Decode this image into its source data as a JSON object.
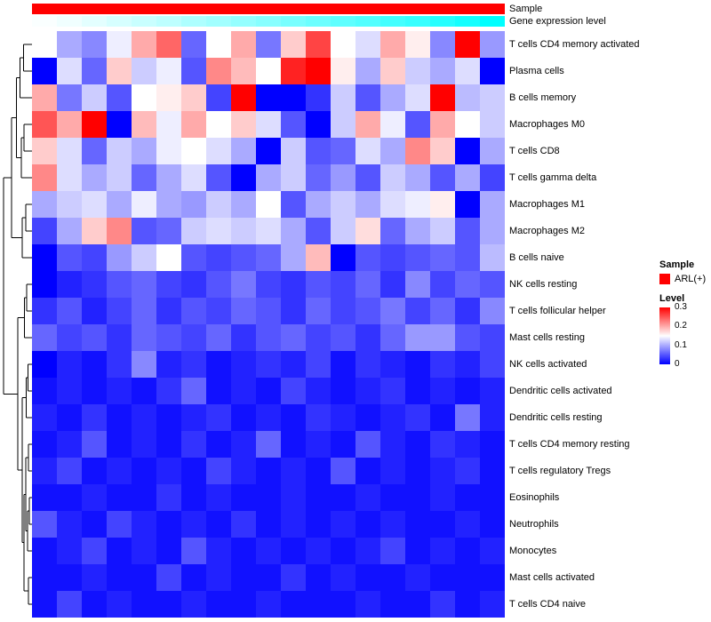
{
  "annotations": {
    "sample_label": "Sample",
    "gene_label": "Gene expression level",
    "sample_color": "#FF0000",
    "gene_gradient_low": "#FFFFFF",
    "gene_gradient_high": "#00FFFF",
    "gene_levels": [
      0.02,
      0.06,
      0.11,
      0.16,
      0.21,
      0.26,
      0.32,
      0.37,
      0.42,
      0.47,
      0.53,
      0.58,
      0.63,
      0.68,
      0.74,
      0.79,
      0.85,
      0.92,
      1.0
    ]
  },
  "legend": {
    "sample": {
      "title": "Sample",
      "items": [
        {
          "label": "ARL(+)",
          "color": "#FF0000"
        }
      ]
    },
    "level": {
      "title": "Level",
      "ticks": [
        {
          "label": "0.3",
          "value": 0.3
        },
        {
          "label": "0.2",
          "value": 0.2
        },
        {
          "label": "0.1",
          "value": 0.1
        },
        {
          "label": "0",
          "value": 0.0
        }
      ]
    }
  },
  "chart_data": {
    "type": "heatmap",
    "title": "",
    "rows": [
      "T cells CD4 memory activated",
      "Plasma cells",
      "B cells memory",
      "Macrophages M0",
      "T cells CD8",
      "T cells gamma delta",
      "Macrophages M1",
      "Macrophages M2",
      "B cells naive",
      "NK cells resting",
      "T cells follicular helper",
      "Mast cells resting",
      "NK cells activated",
      "Dendritic cells activated",
      "Dendritic cells resting",
      "T cells CD4 memory resting",
      "T cells regulatory  Tregs",
      "Eosinophils",
      "Neutrophils",
      "Monocytes",
      "Mast cells activated",
      "T cells CD4 naive"
    ],
    "columns": 19,
    "column_labels": [],
    "scale": {
      "min": 0,
      "mid": 0.15,
      "max": 0.3,
      "low_color": "#0000FF",
      "mid_color": "#FFFFFF",
      "high_color": "#FF0000"
    },
    "values": [
      [
        0.15,
        0.1,
        0.08,
        0.14,
        0.2,
        0.24,
        0.06,
        0.15,
        0.2,
        0.07,
        0.18,
        0.26,
        0.15,
        0.13,
        0.2,
        0.16,
        0.08,
        0.3,
        0.09
      ],
      [
        0.0,
        0.13,
        0.06,
        0.18,
        0.12,
        0.14,
        0.05,
        0.22,
        0.19,
        0.15,
        0.28,
        0.3,
        0.16,
        0.1,
        0.18,
        0.12,
        0.1,
        0.13,
        0.0
      ],
      [
        0.2,
        0.07,
        0.12,
        0.05,
        0.15,
        0.16,
        0.18,
        0.04,
        0.3,
        0.0,
        0.0,
        0.03,
        0.12,
        0.05,
        0.1,
        0.13,
        0.3,
        0.11,
        0.12
      ],
      [
        0.25,
        0.2,
        0.3,
        0.0,
        0.19,
        0.14,
        0.2,
        0.15,
        0.18,
        0.13,
        0.05,
        0.0,
        0.12,
        0.2,
        0.14,
        0.05,
        0.2,
        0.15,
        0.12
      ],
      [
        0.18,
        0.13,
        0.06,
        0.12,
        0.1,
        0.14,
        0.15,
        0.13,
        0.1,
        0.0,
        0.12,
        0.05,
        0.06,
        0.13,
        0.1,
        0.22,
        0.18,
        0.0,
        0.1
      ],
      [
        0.22,
        0.13,
        0.1,
        0.12,
        0.06,
        0.1,
        0.13,
        0.05,
        0.0,
        0.1,
        0.12,
        0.06,
        0.09,
        0.05,
        0.12,
        0.1,
        0.05,
        0.1,
        0.04
      ],
      [
        0.1,
        0.12,
        0.13,
        0.1,
        0.14,
        0.1,
        0.09,
        0.12,
        0.1,
        0.15,
        0.05,
        0.1,
        0.12,
        0.1,
        0.13,
        0.14,
        0.16,
        0.0,
        0.1
      ],
      [
        0.04,
        0.1,
        0.18,
        0.22,
        0.05,
        0.06,
        0.12,
        0.13,
        0.12,
        0.13,
        0.1,
        0.05,
        0.12,
        0.17,
        0.06,
        0.1,
        0.12,
        0.05,
        0.1
      ],
      [
        0.0,
        0.05,
        0.04,
        0.09,
        0.12,
        0.15,
        0.05,
        0.04,
        0.05,
        0.06,
        0.1,
        0.19,
        0.0,
        0.05,
        0.04,
        0.05,
        0.06,
        0.05,
        0.11
      ],
      [
        0.0,
        0.02,
        0.03,
        0.05,
        0.06,
        0.04,
        0.03,
        0.05,
        0.07,
        0.04,
        0.03,
        0.05,
        0.04,
        0.06,
        0.03,
        0.08,
        0.04,
        0.06,
        0.05
      ],
      [
        0.03,
        0.05,
        0.02,
        0.04,
        0.06,
        0.03,
        0.05,
        0.04,
        0.06,
        0.05,
        0.03,
        0.06,
        0.04,
        0.05,
        0.07,
        0.04,
        0.06,
        0.03,
        0.08
      ],
      [
        0.06,
        0.04,
        0.05,
        0.03,
        0.06,
        0.05,
        0.04,
        0.06,
        0.03,
        0.05,
        0.06,
        0.04,
        0.05,
        0.03,
        0.06,
        0.09,
        0.09,
        0.05,
        0.04
      ],
      [
        0.0,
        0.02,
        0.01,
        0.03,
        0.08,
        0.02,
        0.03,
        0.01,
        0.02,
        0.03,
        0.02,
        0.04,
        0.01,
        0.03,
        0.02,
        0.01,
        0.03,
        0.02,
        0.04
      ],
      [
        0.01,
        0.02,
        0.01,
        0.02,
        0.01,
        0.03,
        0.06,
        0.01,
        0.02,
        0.01,
        0.04,
        0.02,
        0.01,
        0.02,
        0.03,
        0.01,
        0.02,
        0.01,
        0.02
      ],
      [
        0.02,
        0.01,
        0.03,
        0.01,
        0.02,
        0.01,
        0.02,
        0.03,
        0.01,
        0.02,
        0.01,
        0.03,
        0.02,
        0.01,
        0.02,
        0.03,
        0.01,
        0.07,
        0.02
      ],
      [
        0.01,
        0.02,
        0.05,
        0.01,
        0.02,
        0.01,
        0.03,
        0.01,
        0.02,
        0.06,
        0.01,
        0.02,
        0.01,
        0.05,
        0.02,
        0.01,
        0.03,
        0.02,
        0.01
      ],
      [
        0.02,
        0.04,
        0.01,
        0.02,
        0.01,
        0.02,
        0.01,
        0.04,
        0.02,
        0.01,
        0.02,
        0.01,
        0.05,
        0.01,
        0.02,
        0.01,
        0.02,
        0.03,
        0.01
      ],
      [
        0.01,
        0.01,
        0.02,
        0.01,
        0.01,
        0.03,
        0.01,
        0.02,
        0.01,
        0.01,
        0.02,
        0.01,
        0.01,
        0.02,
        0.01,
        0.01,
        0.02,
        0.01,
        0.01
      ],
      [
        0.05,
        0.02,
        0.01,
        0.04,
        0.02,
        0.01,
        0.02,
        0.01,
        0.03,
        0.01,
        0.02,
        0.01,
        0.02,
        0.01,
        0.02,
        0.01,
        0.01,
        0.02,
        0.01
      ],
      [
        0.01,
        0.02,
        0.04,
        0.01,
        0.02,
        0.01,
        0.05,
        0.02,
        0.01,
        0.02,
        0.01,
        0.02,
        0.01,
        0.02,
        0.04,
        0.01,
        0.02,
        0.01,
        0.02
      ],
      [
        0.01,
        0.01,
        0.02,
        0.01,
        0.01,
        0.04,
        0.01,
        0.02,
        0.01,
        0.01,
        0.03,
        0.01,
        0.02,
        0.01,
        0.01,
        0.02,
        0.01,
        0.01,
        0.01
      ],
      [
        0.01,
        0.04,
        0.01,
        0.02,
        0.01,
        0.01,
        0.02,
        0.01,
        0.01,
        0.02,
        0.01,
        0.01,
        0.01,
        0.02,
        0.01,
        0.01,
        0.03,
        0.01,
        0.02
      ]
    ],
    "dendrogram": {
      "h": 1.0,
      "c": [
        {
          "h": 0.72,
          "c": [
            {
              "h": 0.55,
              "c": [
                {
                  "h": 0.42,
                  "c": [
                    {
                      "h": 0.3,
                      "c": [
                        0,
                        1
                      ]
                    },
                    2
                  ]
                },
                {
                  "h": 0.38,
                  "c": [
                    {
                      "h": 0.28,
                      "c": [
                        3,
                        4
                      ]
                    },
                    5
                  ]
                }
              ]
            },
            {
              "h": 0.35,
              "c": [
                {
                  "h": 0.22,
                  "c": [
                    6,
                    7
                  ]
                },
                8
              ]
            }
          ]
        },
        {
          "h": 0.5,
          "c": [
            {
              "h": 0.26,
              "c": [
                {
                  "h": 0.18,
                  "c": [
                    9,
                    10
                  ]
                },
                11
              ]
            },
            {
              "h": 0.34,
              "c": [
                {
                  "h": 0.2,
                  "c": [
                    {
                      "h": 0.14,
                      "c": [
                        12,
                        13
                      ]
                    },
                    14
                  ]
                },
                {
                  "h": 0.28,
                  "c": [
                    {
                      "h": 0.22,
                      "c": [
                        {
                          "h": 0.12,
                          "c": [
                            15,
                            16
                          ]
                        },
                        {
                          "h": 0.16,
                          "c": [
                            {
                              "h": 0.1,
                              "c": [
                                17,
                                18
                              ]
                            },
                            19
                          ]
                        }
                      ]
                    },
                    {
                      "h": 0.13,
                      "c": [
                        20,
                        21
                      ]
                    }
                  ]
                }
              ]
            }
          ]
        }
      ]
    }
  }
}
